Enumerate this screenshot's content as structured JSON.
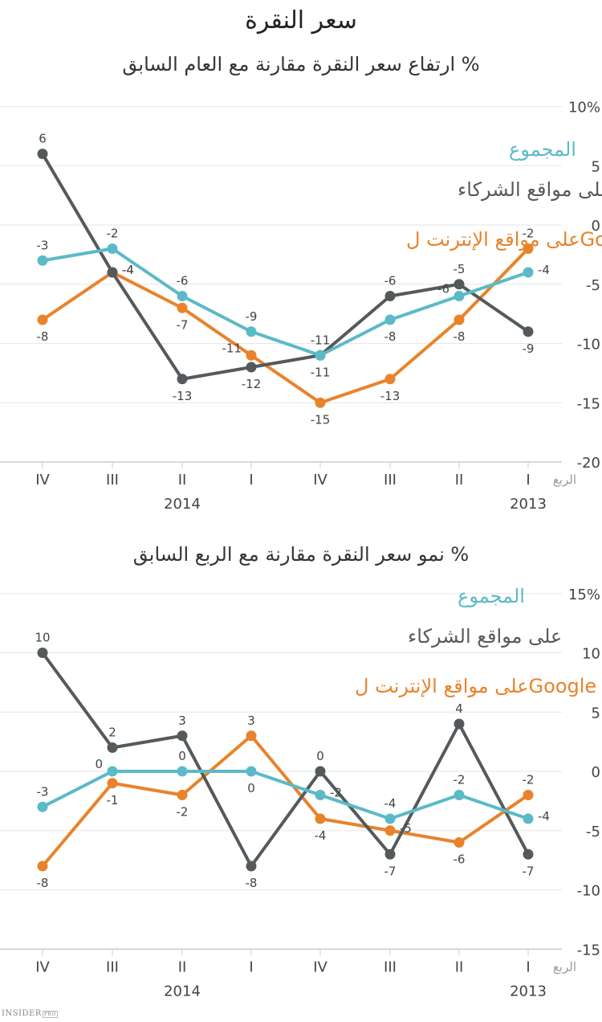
{
  "title": "سعر النقرة",
  "brand": {
    "name": "INSIDER",
    "suffix": "PRO"
  },
  "colors": {
    "partners": "#545a5c",
    "total": "#5bbac7",
    "google": "#e8832a",
    "grid": "#e6e6e6",
    "axis": "#cccccc",
    "text": "#444444"
  },
  "chart_data": [
    {
      "type": "line",
      "title": "% ارتفاع سعر النقرة مقارنة مع العام السابق",
      "xlabel": "الربع",
      "ylabel": "",
      "ylim": [
        -20,
        10
      ],
      "yticks": [
        "10%",
        "5",
        "0",
        "-5",
        "-10",
        "-15",
        "-20"
      ],
      "ytick_values": [
        10,
        5,
        0,
        -5,
        -10,
        -15,
        -20
      ],
      "categories": [
        "IV",
        "III",
        "II",
        "I",
        "IV",
        "III",
        "II",
        "I"
      ],
      "year_labels": [
        {
          "label": "2014",
          "under": 2
        },
        {
          "label": "2013",
          "under": 7
        }
      ],
      "grid": true,
      "legend": [
        {
          "label": "المجموع",
          "series": "total"
        },
        {
          "label": "على مواقع الشركاء",
          "series": "partners"
        },
        {
          "label": "Googleعلى مواقع الإنترنت ل",
          "series": "google"
        }
      ],
      "series": [
        {
          "name": "على مواقع الشركاء",
          "key": "partners",
          "values": [
            6,
            -4,
            -13,
            -12,
            -11,
            -6,
            -5,
            -9
          ]
        },
        {
          "name": "المجموع",
          "key": "total",
          "values": [
            -3,
            -2,
            -6,
            -9,
            -11,
            -8,
            -6,
            -4
          ]
        },
        {
          "name": "Googleعلى مواقع الإنترنت ل",
          "key": "google",
          "values": [
            -8,
            -4,
            -7,
            -11,
            -15,
            -13,
            -8,
            -2
          ]
        }
      ]
    },
    {
      "type": "line",
      "title": "% نمو سعر النقرة مقارنة مع الربع السابق",
      "xlabel": "الربع",
      "ylabel": "",
      "ylim": [
        -15,
        15
      ],
      "yticks": [
        "15%",
        "10",
        "5",
        "0",
        "-5",
        "-10",
        "-15"
      ],
      "ytick_values": [
        15,
        10,
        5,
        0,
        -5,
        -10,
        -15
      ],
      "categories": [
        "IV",
        "III",
        "II",
        "I",
        "IV",
        "III",
        "II",
        "I"
      ],
      "year_labels": [
        {
          "label": "2014",
          "under": 2
        },
        {
          "label": "2013",
          "under": 7
        }
      ],
      "grid": true,
      "legend": [
        {
          "label": "المجموع",
          "series": "total"
        },
        {
          "label": "على مواقع الشركاء",
          "series": "partners"
        },
        {
          "label": "Googleعلى مواقع الإنترنت ل",
          "series": "google"
        }
      ],
      "series": [
        {
          "name": "على مواقع الشركاء",
          "key": "partners",
          "values": [
            10,
            2,
            3,
            -8,
            0,
            -7,
            4,
            -7
          ]
        },
        {
          "name": "المجموع",
          "key": "total",
          "values": [
            -3,
            0,
            0,
            0,
            -2,
            -4,
            -2,
            -4
          ]
        },
        {
          "name": "Googleعلى مواقع الإنترنت ل",
          "key": "google",
          "values": [
            -8,
            -1,
            -2,
            3,
            -4,
            -5,
            -6,
            -2
          ]
        }
      ]
    }
  ]
}
